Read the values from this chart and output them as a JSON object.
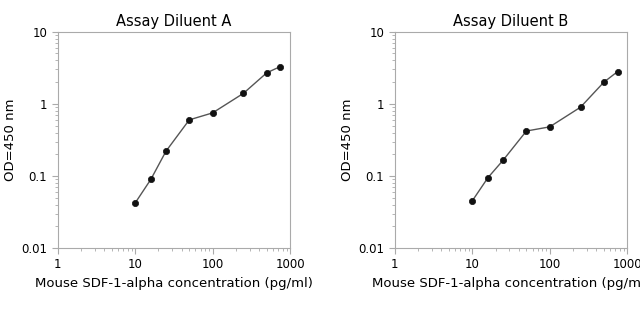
{
  "chart_A": {
    "title": "Assay Diluent A",
    "x_data": [
      10,
      16,
      25,
      50,
      100,
      250,
      500,
      750
    ],
    "y_data": [
      0.042,
      0.09,
      0.22,
      0.6,
      0.75,
      1.4,
      2.7,
      3.3
    ]
  },
  "chart_B": {
    "title": "Assay Diluent B",
    "x_data": [
      10,
      16,
      25,
      50,
      100,
      250,
      500,
      750
    ],
    "y_data": [
      0.045,
      0.095,
      0.165,
      0.42,
      0.48,
      0.9,
      2.0,
      2.8
    ]
  },
  "xlabel": "Mouse SDF-1-alpha concentration (pg/ml)",
  "ylabel": "OD=450 nm",
  "xlim": [
    1,
    1000
  ],
  "ylim": [
    0.01,
    10
  ],
  "line_color": "#555555",
  "marker_color": "#111111",
  "bg_color": "#ffffff",
  "title_fontsize": 10.5,
  "label_fontsize": 9.5,
  "tick_labelsize": 8.5
}
